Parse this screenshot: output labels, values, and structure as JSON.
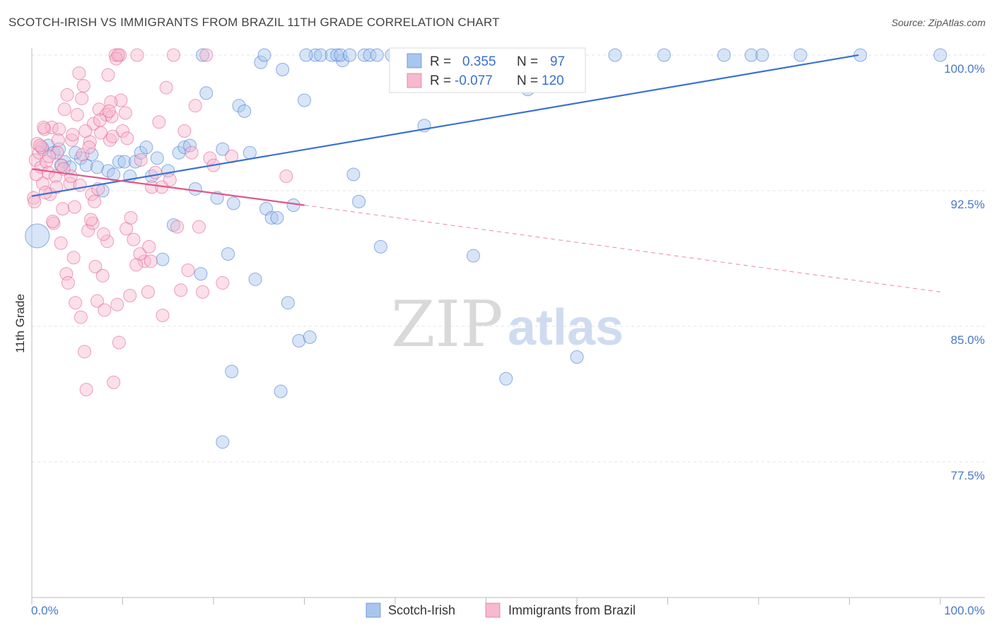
{
  "title": "SCOTCH-IRISH VS IMMIGRANTS FROM BRAZIL 11TH GRADE CORRELATION CHART",
  "source": "Source: ZipAtlas.com",
  "watermark": {
    "zip": "ZIP",
    "atlas": "atlas"
  },
  "colors": {
    "blue": "#3a72d0",
    "blue_fill": "#a9c6ee",
    "pink": "#e0578a",
    "pink_fill": "#f6b9cf"
  },
  "legend": {
    "r_label": "R =",
    "n_label": "N =",
    "rows": [
      {
        "r": "0.355",
        "n": "97"
      },
      {
        "r": "-0.077",
        "n": "120"
      }
    ]
  },
  "chart_data": {
    "type": "scatter",
    "title": "SCOTCH-IRISH VS IMMIGRANTS FROM BRAZIL 11TH GRADE CORRELATION CHART",
    "xlabel": "",
    "ylabel": "11th Grade",
    "xlim": [
      0,
      100
    ],
    "ylim": [
      70,
      100
    ],
    "x_tick_labels": [
      "0.0%",
      "100.0%"
    ],
    "y_ticks": [
      100,
      92.5,
      85,
      77.5
    ],
    "y_tick_labels": [
      "100.0%",
      "92.5%",
      "85.0%",
      "77.5%"
    ],
    "grid": true,
    "legend_position": "top-center",
    "series": [
      {
        "name": "Scotch-Irish",
        "color": "#3a72d0",
        "trend": {
          "x": [
            0,
            91
          ],
          "y": [
            92.2,
            100
          ]
        },
        "points": [
          [
            0.6,
            90
          ],
          [
            1.2,
            94.8
          ],
          [
            1.8,
            95
          ],
          [
            2.4,
            94.6
          ],
          [
            3,
            94.8
          ],
          [
            3.6,
            94.1
          ],
          [
            4.2,
            93.8
          ],
          [
            5.4,
            94.3
          ],
          [
            6,
            93.9
          ],
          [
            6.6,
            94.5
          ],
          [
            7.2,
            93.8
          ],
          [
            7.8,
            92.5
          ],
          [
            8.4,
            93.6
          ],
          [
            9,
            93.4
          ],
          [
            9.6,
            94.1
          ],
          [
            10.2,
            94.1
          ],
          [
            10.8,
            93.3
          ],
          [
            11.4,
            94.1
          ],
          [
            12,
            94.6
          ],
          [
            12.6,
            94.9
          ],
          [
            13.2,
            93.3
          ],
          [
            13.8,
            94.3
          ],
          [
            14.4,
            88.7
          ],
          [
            15,
            93.6
          ],
          [
            15.6,
            90.6
          ],
          [
            16.2,
            94.6
          ],
          [
            16.8,
            94.9
          ],
          [
            17.4,
            95
          ],
          [
            18,
            92.6
          ],
          [
            18.6,
            87.9
          ],
          [
            19.2,
            97.9
          ],
          [
            20.4,
            92.1
          ],
          [
            21,
            94.8
          ],
          [
            21.6,
            89
          ],
          [
            22.2,
            91.8
          ],
          [
            22.8,
            97.2
          ],
          [
            23.4,
            96.9
          ],
          [
            24,
            94.6
          ],
          [
            24.6,
            87.6
          ],
          [
            25.2,
            99.6
          ],
          [
            25.8,
            91.5
          ],
          [
            26.4,
            91
          ],
          [
            27,
            91
          ],
          [
            27.6,
            99.2
          ],
          [
            28.2,
            86.3
          ],
          [
            28.8,
            91.7
          ],
          [
            29.4,
            84.2
          ],
          [
            30,
            97.5
          ],
          [
            30.6,
            84.4
          ],
          [
            31.2,
            100
          ],
          [
            31.8,
            100
          ],
          [
            33,
            100
          ],
          [
            34.2,
            99.7
          ],
          [
            35.4,
            93.4
          ],
          [
            36,
            91.9
          ],
          [
            36.6,
            100
          ],
          [
            37.2,
            100
          ],
          [
            38.4,
            89.4
          ],
          [
            39.6,
            100
          ],
          [
            40.2,
            100
          ],
          [
            41.4,
            100
          ],
          [
            43.2,
            96.1
          ],
          [
            44.4,
            100
          ],
          [
            46.2,
            100
          ],
          [
            48,
            100
          ],
          [
            48.6,
            88.9
          ],
          [
            50.4,
            100
          ],
          [
            52.2,
            82.1
          ],
          [
            54.6,
            98.1
          ],
          [
            56.4,
            100
          ],
          [
            58.2,
            100
          ],
          [
            60,
            83.3
          ],
          [
            64.2,
            100
          ],
          [
            69.6,
            100
          ],
          [
            76.2,
            100
          ],
          [
            79.2,
            100
          ],
          [
            80.4,
            100
          ],
          [
            84.6,
            100
          ],
          [
            91.2,
            100
          ],
          [
            100,
            100
          ],
          [
            4.8,
            94.6
          ],
          [
            3.2,
            93.9
          ],
          [
            18.8,
            100
          ],
          [
            22,
            82.5
          ],
          [
            27.4,
            81.4
          ],
          [
            21,
            78.6
          ],
          [
            33.6,
            100
          ],
          [
            34,
            100
          ],
          [
            38,
            100
          ],
          [
            40.6,
            100
          ],
          [
            42.2,
            100
          ],
          [
            52.8,
            100
          ],
          [
            59.8,
            100
          ],
          [
            30.2,
            100
          ],
          [
            25.6,
            100
          ],
          [
            35,
            100
          ],
          [
            47,
            100
          ]
        ]
      },
      {
        "name": "Immigrants from Brazil",
        "color": "#e0578a",
        "trend": {
          "x": [
            0,
            30
          ],
          "y": [
            93.7,
            91.7
          ]
        },
        "trend_dashed": {
          "x": [
            30,
            100
          ],
          "y": [
            91.7,
            86.9
          ]
        },
        "points": [
          [
            0.2,
            92.1
          ],
          [
            0.4,
            94.2
          ],
          [
            0.6,
            95.1
          ],
          [
            0.8,
            94.6
          ],
          [
            1,
            93.8
          ],
          [
            1.2,
            92.9
          ],
          [
            1.4,
            95.9
          ],
          [
            1.6,
            94.1
          ],
          [
            1.8,
            93.5
          ],
          [
            2,
            92.3
          ],
          [
            2.2,
            96
          ],
          [
            2.4,
            90.7
          ],
          [
            2.6,
            93.3
          ],
          [
            2.8,
            94.6
          ],
          [
            3,
            95.9
          ],
          [
            3.2,
            89.6
          ],
          [
            3.4,
            91.5
          ],
          [
            3.6,
            97
          ],
          [
            3.8,
            87.9
          ],
          [
            4,
            87.4
          ],
          [
            4.2,
            92.9
          ],
          [
            4.4,
            95.3
          ],
          [
            4.6,
            88.8
          ],
          [
            4.8,
            86.3
          ],
          [
            5,
            96.7
          ],
          [
            5.2,
            99
          ],
          [
            5.4,
            85.5
          ],
          [
            5.6,
            94.5
          ],
          [
            5.8,
            83.6
          ],
          [
            6,
            81.5
          ],
          [
            6.2,
            90.3
          ],
          [
            6.4,
            95.2
          ],
          [
            6.6,
            92.3
          ],
          [
            6.8,
            96.2
          ],
          [
            7,
            88.3
          ],
          [
            7.2,
            86.4
          ],
          [
            7.4,
            97
          ],
          [
            7.6,
            95.7
          ],
          [
            7.8,
            87.8
          ],
          [
            8,
            85.9
          ],
          [
            8.2,
            96.7
          ],
          [
            8.4,
            98.9
          ],
          [
            8.6,
            95.3
          ],
          [
            8.8,
            96.6
          ],
          [
            9,
            81.9
          ],
          [
            9.2,
            100
          ],
          [
            9.4,
            86.2
          ],
          [
            9.6,
            84.1
          ],
          [
            9.8,
            97.5
          ],
          [
            10,
            95.8
          ],
          [
            10.4,
            90.4
          ],
          [
            10.8,
            86.7
          ],
          [
            11.2,
            89.8
          ],
          [
            11.6,
            100
          ],
          [
            12,
            94.2
          ],
          [
            12.4,
            88.6
          ],
          [
            12.8,
            86.9
          ],
          [
            13.2,
            92.7
          ],
          [
            13.6,
            93.5
          ],
          [
            14,
            96.3
          ],
          [
            14.4,
            85.6
          ],
          [
            14.8,
            98.2
          ],
          [
            15.2,
            93.1
          ],
          [
            15.6,
            100
          ],
          [
            16,
            90.5
          ],
          [
            16.4,
            87
          ],
          [
            16.8,
            95.8
          ],
          [
            17.2,
            88.1
          ],
          [
            17.6,
            94.6
          ],
          [
            18,
            97.2
          ],
          [
            18.4,
            90.5
          ],
          [
            18.8,
            86.9
          ],
          [
            19.2,
            100
          ],
          [
            19.6,
            94.3
          ],
          [
            20,
            93.9
          ],
          [
            21,
            87.4
          ],
          [
            22,
            94.4
          ],
          [
            28,
            93.3
          ],
          [
            1.1,
            94.9
          ],
          [
            2.7,
            92.7
          ],
          [
            3.9,
            97.8
          ],
          [
            5.9,
            95.8
          ],
          [
            6.9,
            91.9
          ],
          [
            8.7,
            97.4
          ],
          [
            9.7,
            100
          ],
          [
            11.9,
            89
          ],
          [
            13.1,
            88.6
          ],
          [
            0.3,
            91.9
          ],
          [
            1.5,
            92.4
          ],
          [
            2.9,
            95.3
          ],
          [
            4.3,
            93.3
          ],
          [
            5.3,
            92.8
          ],
          [
            6.3,
            94.9
          ],
          [
            7.3,
            92.6
          ],
          [
            8.3,
            89.7
          ],
          [
            9.3,
            99.8
          ],
          [
            10.3,
            96.8
          ],
          [
            0.9,
            95
          ],
          [
            1.9,
            94.4
          ],
          [
            3.3,
            93.9
          ],
          [
            4.7,
            91.6
          ],
          [
            5.7,
            98.3
          ],
          [
            6.7,
            90.7
          ],
          [
            7.9,
            90.1
          ],
          [
            8.9,
            95.5
          ],
          [
            10.9,
            91
          ],
          [
            12.9,
            89.4
          ],
          [
            14.3,
            92.7
          ],
          [
            0.5,
            93.4
          ],
          [
            1.3,
            96
          ],
          [
            2.3,
            90.8
          ],
          [
            3.5,
            93.7
          ],
          [
            4.5,
            95.6
          ],
          [
            5.5,
            97.6
          ],
          [
            6.5,
            90.9
          ],
          [
            7.5,
            96.4
          ],
          [
            8.5,
            96.9
          ],
          [
            9.5,
            100
          ],
          [
            10.5,
            95.4
          ],
          [
            11.5,
            88.4
          ]
        ]
      }
    ]
  },
  "bottom_legend": {
    "items": [
      {
        "label": "Scotch-Irish"
      },
      {
        "label": "Immigrants from Brazil"
      }
    ]
  }
}
